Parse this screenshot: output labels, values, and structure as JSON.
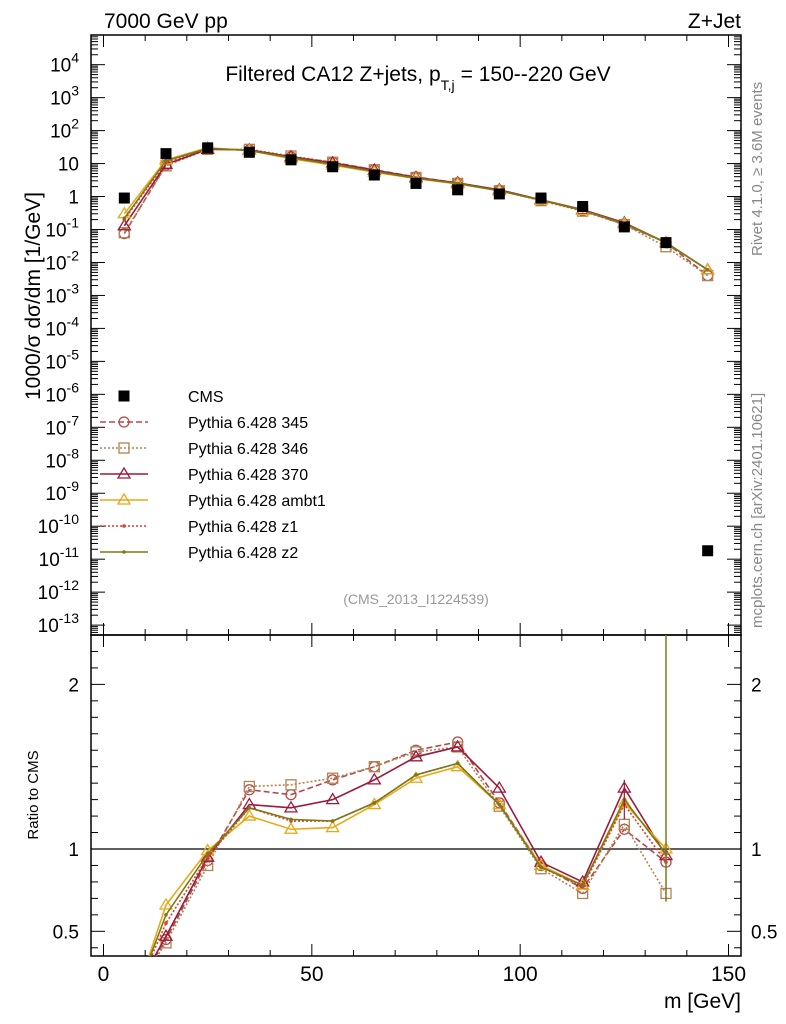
{
  "header": {
    "left": "7000 GeV pp",
    "right": "Z+Jet"
  },
  "side_labels": {
    "version": "Rivet 4.1.0, ≥ 3.6M events",
    "source": "mcplots.cern.ch [arXiv:2401.10621]"
  },
  "chart_data": {
    "type": "line",
    "title": "Filtered CA12 Z+jets, p_{T,j} = 150--220 GeV",
    "title_main": "Filtered CA12 Z+jets, p",
    "title_sub": "T,j",
    "title_tail": "= 150--220 GeV",
    "analysis_id": "(CMS_2013_I1224539)",
    "xlabel": "m [GeV]",
    "ylabel": "1000/σ  dσ/dm [1/GeV]",
    "ratio_ylabel": "Ratio to CMS",
    "xlim": [
      -3,
      153
    ],
    "ylim_log10": [
      -13.3,
      4.9
    ],
    "ratio_ylim": [
      0.35,
      2.3
    ],
    "x_ticks": [
      0,
      50,
      100,
      150
    ],
    "y_tick_labels": [
      "10^{-13}",
      "10^{-12}",
      "10^{-11}",
      "10^{-10}",
      "10^{-9}",
      "10^{-8}",
      "10^{-7}",
      "10^{-6}",
      "10^{-5}",
      "10^{-4}",
      "10^{-3}",
      "10^{-2}",
      "10^{-1}",
      "1",
      "10",
      "10^{2}",
      "10^{3}",
      "10^{4}"
    ],
    "ratio_ticks": [
      0.5,
      1,
      2
    ],
    "ratio_tick_labels": [
      "0.5",
      "1",
      "2"
    ],
    "x": [
      5,
      15,
      25,
      35,
      45,
      55,
      65,
      75,
      85,
      95,
      105,
      115,
      125,
      135,
      145
    ],
    "data": {
      "name": "CMS",
      "values": [
        0.9,
        20,
        30,
        22,
        13,
        8,
        4.5,
        2.5,
        1.6,
        1.2,
        0.9,
        0.5,
        0.12,
        0.04,
        1.8e-11
      ]
    },
    "series": [
      {
        "name": "Pythia 6.428 345",
        "color": "#b5484e",
        "marker": "circle",
        "dash": "6,3",
        "values": [
          0.075,
          9,
          28,
          26,
          16,
          11,
          6.5,
          3.9,
          2.6,
          1.55,
          0.78,
          0.38,
          0.14,
          0.04,
          0.004
        ],
        "ratio": [
          null,
          0.45,
          0.93,
          1.36,
          1.33,
          1.42,
          1.5,
          1.6,
          1.65,
          1.28,
          0.9,
          0.76,
          1.12,
          0.92,
          null
        ]
      },
      {
        "name": "Pythia 6.428 346",
        "color": "#b08450",
        "marker": "square",
        "dash": "2,2",
        "values": [
          0.08,
          8.5,
          27,
          27,
          17,
          11,
          6.5,
          3.8,
          2.5,
          1.5,
          0.75,
          0.36,
          0.14,
          0.03,
          0.004
        ],
        "ratio": [
          null,
          0.43,
          0.9,
          1.38,
          1.39,
          1.43,
          1.5,
          1.59,
          1.62,
          1.26,
          0.88,
          0.73,
          1.15,
          0.73,
          null
        ]
      },
      {
        "name": "Pythia 6.428 370",
        "color": "#9c1a3c",
        "marker": "triangle",
        "dash": "",
        "values": [
          0.13,
          9.5,
          27,
          26,
          16,
          10.5,
          6.3,
          3.8,
          2.6,
          1.6,
          0.8,
          0.4,
          0.16,
          0.04,
          0.006
        ],
        "ratio": [
          null,
          0.47,
          0.95,
          1.27,
          1.25,
          1.3,
          1.42,
          1.56,
          1.62,
          1.37,
          0.92,
          0.8,
          1.37,
          0.96,
          null
        ]
      },
      {
        "name": "Pythia 6.428 ambt1",
        "color": "#e8a818",
        "marker": "triangle",
        "dash": "",
        "values": [
          0.3,
          13,
          30,
          25,
          14,
          9,
          5.5,
          3.5,
          2.4,
          1.5,
          0.78,
          0.38,
          0.15,
          0.04,
          0.006
        ],
        "ratio": [
          null,
          0.66,
          0.99,
          1.2,
          1.12,
          1.13,
          1.27,
          1.43,
          1.5,
          1.27,
          0.9,
          0.78,
          1.28,
          1.0,
          null
        ]
      },
      {
        "name": "Pythia 6.428 z1",
        "color": "#e03c28",
        "marker": "dot",
        "dash": "2,2",
        "values": [
          0.2,
          11,
          29,
          25,
          15,
          9.5,
          5.8,
          3.6,
          2.5,
          1.5,
          0.78,
          0.37,
          0.15,
          0.04,
          0.006
        ],
        "ratio": [
          null,
          0.55,
          0.95,
          1.25,
          1.17,
          1.17,
          1.28,
          1.45,
          1.52,
          1.27,
          0.89,
          0.77,
          1.27,
          0.92,
          null
        ]
      },
      {
        "name": "Pythia 6.428 z2",
        "color": "#7a7a18",
        "marker": "dot",
        "dash": "",
        "values": [
          0.22,
          12,
          29,
          25,
          15,
          9.5,
          5.8,
          3.6,
          2.5,
          1.5,
          0.79,
          0.38,
          0.15,
          0.04,
          0.006
        ],
        "ratio": [
          null,
          0.6,
          0.97,
          1.25,
          1.18,
          1.17,
          1.28,
          1.45,
          1.52,
          1.27,
          0.89,
          0.78,
          1.3,
          0.97,
          null
        ]
      }
    ]
  }
}
